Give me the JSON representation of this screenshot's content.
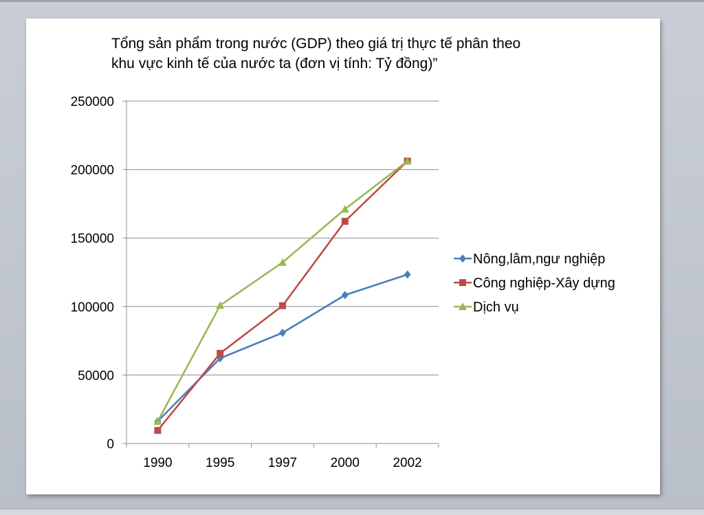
{
  "chart_data": {
    "type": "line",
    "title_line1": "Tổng sản phẩm trong nước (GDP) theo giá trị thực tế phân theo",
    "title_line2": "khu vực kinh tế của nước ta (đơn vị tính: Tỷ đồng)”",
    "xlabel": "",
    "ylabel": "",
    "categories": [
      "1990",
      "1995",
      "1997",
      "2000",
      "2002"
    ],
    "ylim": [
      0,
      250000
    ],
    "yticks": [
      "0",
      "50000",
      "100000",
      "150000",
      "200000",
      "250000"
    ],
    "grid": true,
    "legend_position": "right",
    "series": [
      {
        "name": "Nông,lâm,ngư  nghiệp",
        "color": "#4a7ebb",
        "marker": "diamond",
        "values": [
          16252,
          62219,
          80826,
          108356,
          123383
        ]
      },
      {
        "name": "Công nghiệp-Xây dựng",
        "color": "#be4b48",
        "marker": "square",
        "values": [
          9513,
          65820,
          100595,
          162220,
          206197
        ]
      },
      {
        "name": "Dịch vụ",
        "color": "#98b954",
        "marker": "triangle",
        "values": [
          16190,
          100853,
          132202,
          171070,
          206182
        ]
      }
    ]
  }
}
